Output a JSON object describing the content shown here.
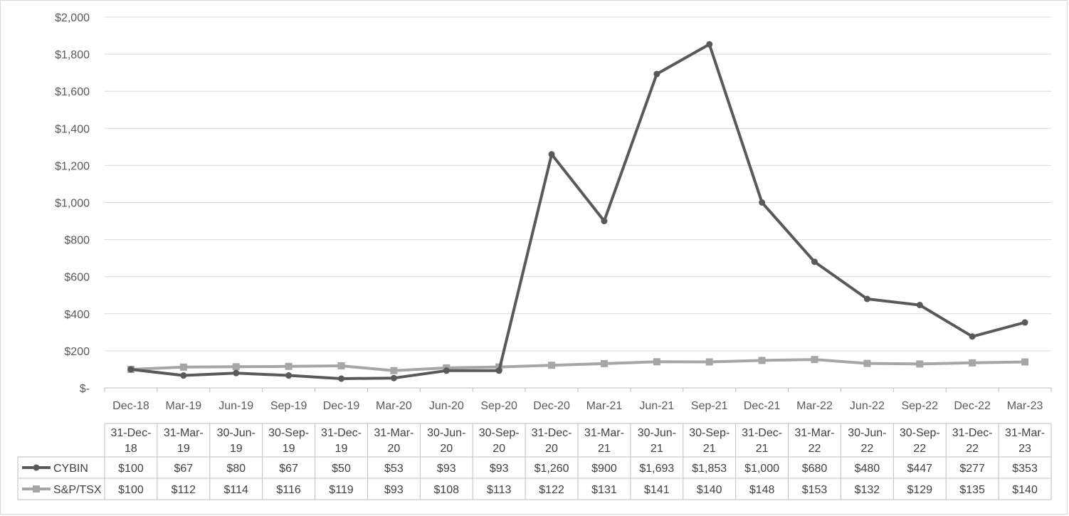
{
  "chart_data": {
    "type": "line",
    "title": "",
    "xlabel": "",
    "ylabel": "",
    "ylim": [
      0,
      2000
    ],
    "y_ticks": [
      "$-",
      "$200",
      "$400",
      "$600",
      "$800",
      "$1,000",
      "$1,200",
      "$1,400",
      "$1,600",
      "$1,800",
      "$2,000"
    ],
    "categories": [
      "Dec-18",
      "Mar-19",
      "Jun-19",
      "Sep-19",
      "Dec-19",
      "Mar-20",
      "Jun-20",
      "Sep-20",
      "Dec-20",
      "Mar-21",
      "Jun-21",
      "Sep-21",
      "Dec-21",
      "Mar-22",
      "Jun-22",
      "Sep-22",
      "Dec-22",
      "Mar-23"
    ],
    "table_headers": [
      [
        "31-Dec-",
        "18"
      ],
      [
        "31-Mar-",
        "19"
      ],
      [
        "30-Jun-",
        "19"
      ],
      [
        "30-Sep-",
        "19"
      ],
      [
        "31-Dec-",
        "19"
      ],
      [
        "31-Mar-",
        "20"
      ],
      [
        "30-Jun-",
        "20"
      ],
      [
        "30-Sep-",
        "20"
      ],
      [
        "31-Dec-",
        "20"
      ],
      [
        "31-Mar-",
        "21"
      ],
      [
        "30-Jun-",
        "21"
      ],
      [
        "30-Sep-",
        "21"
      ],
      [
        "31-Dec-",
        "21"
      ],
      [
        "31-Mar-",
        "22"
      ],
      [
        "30-Jun-",
        "22"
      ],
      [
        "30-Sep-",
        "22"
      ],
      [
        "31-Dec-",
        "22"
      ],
      [
        "31-Mar-",
        "23"
      ]
    ],
    "grid": true,
    "legend": "data-table",
    "series": [
      {
        "name": "CYBIN",
        "color": "#595959",
        "marker": "circle",
        "values": [
          100,
          67,
          80,
          67,
          50,
          53,
          93,
          93,
          1260,
          900,
          1693,
          1853,
          1000,
          680,
          480,
          447,
          277,
          353
        ],
        "labels": [
          "$100",
          "$67",
          "$80",
          "$67",
          "$50",
          "$53",
          "$93",
          "$93",
          "$1,260",
          "$900",
          "$1,693",
          "$1,853",
          "$1,000",
          "$680",
          "$480",
          "$447",
          "$277",
          "$353"
        ]
      },
      {
        "name": "S&P/TSX",
        "color": "#a6a6a6",
        "marker": "square",
        "values": [
          100,
          112,
          114,
          116,
          119,
          93,
          108,
          113,
          122,
          131,
          141,
          140,
          148,
          153,
          132,
          129,
          135,
          140
        ],
        "labels": [
          "$100",
          "$112",
          "$114",
          "$116",
          "$119",
          "$93",
          "$108",
          "$113",
          "$122",
          "$131",
          "$141",
          "$140",
          "$148",
          "$153",
          "$132",
          "$129",
          "$135",
          "$140"
        ]
      }
    ]
  }
}
